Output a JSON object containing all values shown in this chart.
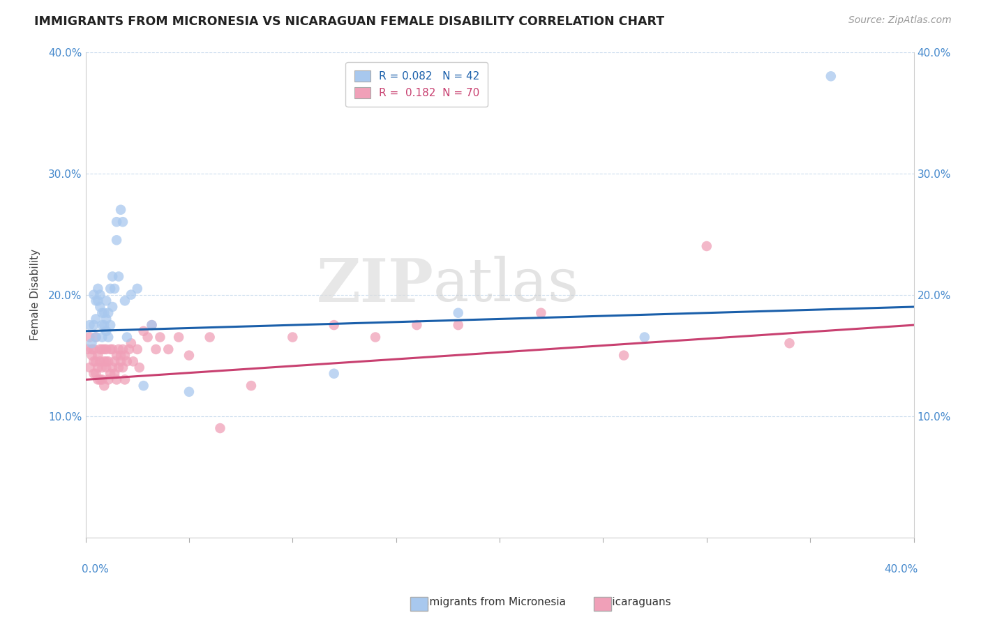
{
  "title": "IMMIGRANTS FROM MICRONESIA VS NICARAGUAN FEMALE DISABILITY CORRELATION CHART",
  "source": "Source: ZipAtlas.com",
  "ylabel": "Female Disability",
  "xlim": [
    0.0,
    0.4
  ],
  "ylim": [
    0.0,
    0.4
  ],
  "yticks": [
    0.1,
    0.2,
    0.3,
    0.4
  ],
  "ytick_labels": [
    "10.0%",
    "20.0%",
    "30.0%",
    "40.0%"
  ],
  "legend_line1": "R = 0.082   N = 42",
  "legend_line2": "R =  0.182  N = 70",
  "color_blue": "#A8C8EE",
  "color_pink": "#F0A0B8",
  "line_color_blue": "#1A5FAA",
  "line_color_pink": "#C84070",
  "blue_line_start_y": 0.17,
  "blue_line_end_y": 0.19,
  "pink_line_start_y": 0.13,
  "pink_line_end_y": 0.175,
  "series1_x": [
    0.002,
    0.003,
    0.004,
    0.004,
    0.005,
    0.005,
    0.005,
    0.006,
    0.006,
    0.007,
    0.007,
    0.008,
    0.008,
    0.008,
    0.009,
    0.009,
    0.01,
    0.01,
    0.01,
    0.011,
    0.011,
    0.012,
    0.012,
    0.013,
    0.013,
    0.014,
    0.015,
    0.015,
    0.016,
    0.017,
    0.018,
    0.019,
    0.02,
    0.022,
    0.025,
    0.028,
    0.032,
    0.05,
    0.12,
    0.18,
    0.27,
    0.36
  ],
  "series1_y": [
    0.175,
    0.16,
    0.2,
    0.175,
    0.195,
    0.165,
    0.18,
    0.195,
    0.205,
    0.19,
    0.2,
    0.175,
    0.185,
    0.165,
    0.175,
    0.185,
    0.18,
    0.17,
    0.195,
    0.185,
    0.165,
    0.175,
    0.205,
    0.19,
    0.215,
    0.205,
    0.26,
    0.245,
    0.215,
    0.27,
    0.26,
    0.195,
    0.165,
    0.2,
    0.205,
    0.125,
    0.175,
    0.12,
    0.135,
    0.185,
    0.165,
    0.38
  ],
  "series2_x": [
    0.001,
    0.002,
    0.002,
    0.003,
    0.003,
    0.004,
    0.004,
    0.004,
    0.005,
    0.005,
    0.005,
    0.006,
    0.006,
    0.006,
    0.007,
    0.007,
    0.007,
    0.008,
    0.008,
    0.008,
    0.009,
    0.009,
    0.009,
    0.01,
    0.01,
    0.01,
    0.011,
    0.011,
    0.012,
    0.012,
    0.013,
    0.013,
    0.014,
    0.014,
    0.015,
    0.015,
    0.016,
    0.016,
    0.017,
    0.017,
    0.018,
    0.018,
    0.019,
    0.019,
    0.02,
    0.021,
    0.022,
    0.023,
    0.025,
    0.026,
    0.028,
    0.03,
    0.032,
    0.034,
    0.036,
    0.04,
    0.045,
    0.05,
    0.06,
    0.065,
    0.08,
    0.1,
    0.12,
    0.14,
    0.16,
    0.18,
    0.22,
    0.26,
    0.3,
    0.34
  ],
  "series2_y": [
    0.155,
    0.14,
    0.165,
    0.15,
    0.155,
    0.145,
    0.135,
    0.155,
    0.145,
    0.135,
    0.165,
    0.14,
    0.15,
    0.13,
    0.145,
    0.13,
    0.155,
    0.14,
    0.155,
    0.13,
    0.145,
    0.155,
    0.125,
    0.145,
    0.155,
    0.14,
    0.145,
    0.13,
    0.135,
    0.155,
    0.14,
    0.155,
    0.135,
    0.145,
    0.15,
    0.13,
    0.155,
    0.14,
    0.15,
    0.145,
    0.155,
    0.14,
    0.15,
    0.13,
    0.145,
    0.155,
    0.16,
    0.145,
    0.155,
    0.14,
    0.17,
    0.165,
    0.175,
    0.155,
    0.165,
    0.155,
    0.165,
    0.15,
    0.165,
    0.09,
    0.125,
    0.165,
    0.175,
    0.165,
    0.175,
    0.175,
    0.185,
    0.15,
    0.24,
    0.16
  ]
}
